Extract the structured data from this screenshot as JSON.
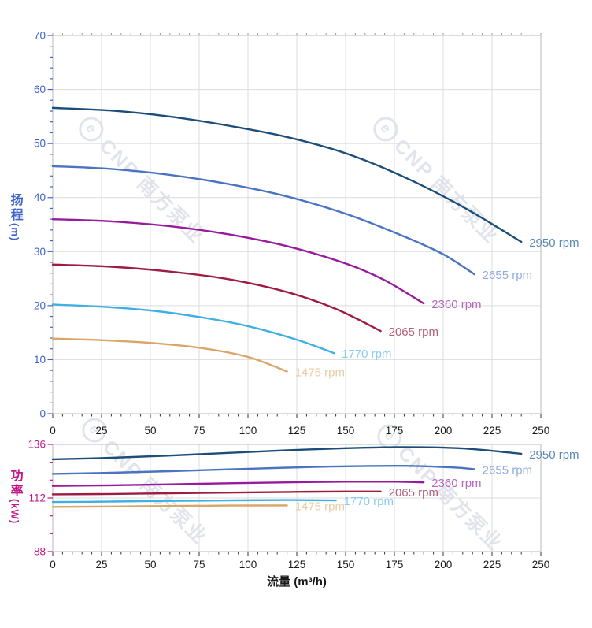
{
  "watermark": {
    "logo": "e",
    "text": "CNP 南方泵业"
  },
  "chart_data": [
    {
      "id": "head",
      "type": "line",
      "title": "",
      "ylabel_cjk": "扬程",
      "ylabel_unit": "(m)",
      "axis_color": "#3f63cc",
      "xlim": [
        0,
        250
      ],
      "ylim": [
        0,
        70
      ],
      "x_ticks": [
        0,
        25,
        50,
        75,
        100,
        125,
        150,
        175,
        200,
        225,
        250
      ],
      "y_ticks": [
        0,
        10,
        20,
        30,
        40,
        50,
        60,
        70
      ],
      "x_minor": 5,
      "y_minor": 2,
      "x_major": 25,
      "y_major": 10,
      "grid": true,
      "legend_position": "at-line-ends",
      "series": [
        {
          "name": "2950 rpm",
          "color": "#1c4e79",
          "label_color": "#5b89b4",
          "points": [
            [
              0,
              56.6
            ],
            [
              30,
              56.1
            ],
            [
              60,
              55.0
            ],
            [
              90,
              53.3
            ],
            [
              120,
              51.2
            ],
            [
              150,
              48.2
            ],
            [
              180,
              43.8
            ],
            [
              210,
              38.3
            ],
            [
              240,
              31.8
            ]
          ]
        },
        {
          "name": "2655 rpm",
          "color": "#4a73c2",
          "label_color": "#93abdd",
          "points": [
            [
              0,
              45.8
            ],
            [
              30,
              45.3
            ],
            [
              60,
              44.2
            ],
            [
              90,
              42.5
            ],
            [
              120,
              40.2
            ],
            [
              150,
              37.0
            ],
            [
              180,
              32.8
            ],
            [
              200,
              29.5
            ],
            [
              216,
              25.8
            ]
          ]
        },
        {
          "name": "2360 rpm",
          "color": "#991a9e",
          "label_color": "#b565bd",
          "points": [
            [
              0,
              36.0
            ],
            [
              30,
              35.6
            ],
            [
              60,
              34.7
            ],
            [
              90,
              33.2
            ],
            [
              120,
              31.0
            ],
            [
              150,
              27.8
            ],
            [
              170,
              24.7
            ],
            [
              190,
              20.4
            ]
          ]
        },
        {
          "name": "2065 rpm",
          "color": "#9e1c40",
          "label_color": "#b46077",
          "points": [
            [
              0,
              27.6
            ],
            [
              30,
              27.2
            ],
            [
              60,
              26.3
            ],
            [
              90,
              24.9
            ],
            [
              120,
              22.5
            ],
            [
              145,
              19.4
            ],
            [
              168,
              15.3
            ]
          ]
        },
        {
          "name": "1770 rpm",
          "color": "#3fb0e4",
          "label_color": "#88cdf0",
          "points": [
            [
              0,
              20.2
            ],
            [
              25,
              19.8
            ],
            [
              50,
              19.1
            ],
            [
              75,
              17.9
            ],
            [
              100,
              16.2
            ],
            [
              125,
              13.7
            ],
            [
              144,
              11.2
            ]
          ]
        },
        {
          "name": "1475 rpm",
          "color": "#d9a568",
          "label_color": "#e9cda6",
          "points": [
            [
              0,
              13.9
            ],
            [
              25,
              13.6
            ],
            [
              50,
              13.1
            ],
            [
              75,
              12.2
            ],
            [
              100,
              10.5
            ],
            [
              120,
              7.8
            ]
          ]
        }
      ]
    },
    {
      "id": "power",
      "type": "line",
      "title": "",
      "xlabel": "流量 (m³/h)",
      "ylabel_cjk": "功率",
      "ylabel_unit": "(kW)",
      "axis_color": "#c2168b",
      "xlim": [
        0,
        250
      ],
      "ylim": [
        88,
        136
      ],
      "x_ticks": [
        0,
        25,
        50,
        75,
        100,
        125,
        150,
        175,
        200,
        225,
        250
      ],
      "y_ticks": [
        88,
        112,
        136
      ],
      "x_minor": 5,
      "y_minor": 8,
      "x_major": 25,
      "y_major": 24,
      "grid": true,
      "legend_position": "at-line-ends",
      "series": [
        {
          "name": "2950 rpm",
          "color": "#1c4e79",
          "label_color": "#5b89b4",
          "points": [
            [
              0,
              129.3
            ],
            [
              30,
              130.0
            ],
            [
              60,
              131.0
            ],
            [
              90,
              132.2
            ],
            [
              120,
              133.4
            ],
            [
              150,
              134.3
            ],
            [
              180,
              134.8
            ],
            [
              210,
              134.2
            ],
            [
              240,
              131.8
            ]
          ]
        },
        {
          "name": "2655 rpm",
          "color": "#4a73c2",
          "label_color": "#93abdd",
          "points": [
            [
              0,
              122.8
            ],
            [
              30,
              123.3
            ],
            [
              60,
              124.0
            ],
            [
              90,
              124.8
            ],
            [
              120,
              125.6
            ],
            [
              150,
              126.2
            ],
            [
              180,
              126.4
            ],
            [
              205,
              125.7
            ],
            [
              216,
              124.9
            ]
          ]
        },
        {
          "name": "2360 rpm",
          "color": "#991a9e",
          "label_color": "#b565bd",
          "points": [
            [
              0,
              117.4
            ],
            [
              30,
              117.7
            ],
            [
              60,
              118.1
            ],
            [
              90,
              118.6
            ],
            [
              120,
              119.0
            ],
            [
              150,
              119.3
            ],
            [
              175,
              119.3
            ],
            [
              190,
              119.0
            ]
          ]
        },
        {
          "name": "2065 rpm",
          "color": "#9e1c40",
          "label_color": "#b46077",
          "points": [
            [
              0,
              113.6
            ],
            [
              30,
              113.8
            ],
            [
              60,
              114.1
            ],
            [
              90,
              114.4
            ],
            [
              120,
              114.7
            ],
            [
              150,
              114.9
            ],
            [
              168,
              114.9
            ]
          ]
        },
        {
          "name": "1770 rpm",
          "color": "#3fb0e4",
          "label_color": "#88cdf0",
          "points": [
            [
              0,
              110.2
            ],
            [
              30,
              110.4
            ],
            [
              60,
              110.7
            ],
            [
              90,
              110.9
            ],
            [
              120,
              111.1
            ],
            [
              145,
              110.9
            ]
          ]
        },
        {
          "name": "1475 rpm",
          "color": "#d9a568",
          "label_color": "#e9cda6",
          "points": [
            [
              0,
              108.0
            ],
            [
              30,
              108.2
            ],
            [
              60,
              108.4
            ],
            [
              90,
              108.6
            ],
            [
              120,
              108.7
            ]
          ]
        }
      ]
    }
  ],
  "style": {
    "grid_color": "#dcdcdc",
    "border_color": "#c4c4c4",
    "x_tick_color": "#333333",
    "x_tick_label_color": "#1a1a1a",
    "top_tick_color": "#999999"
  }
}
